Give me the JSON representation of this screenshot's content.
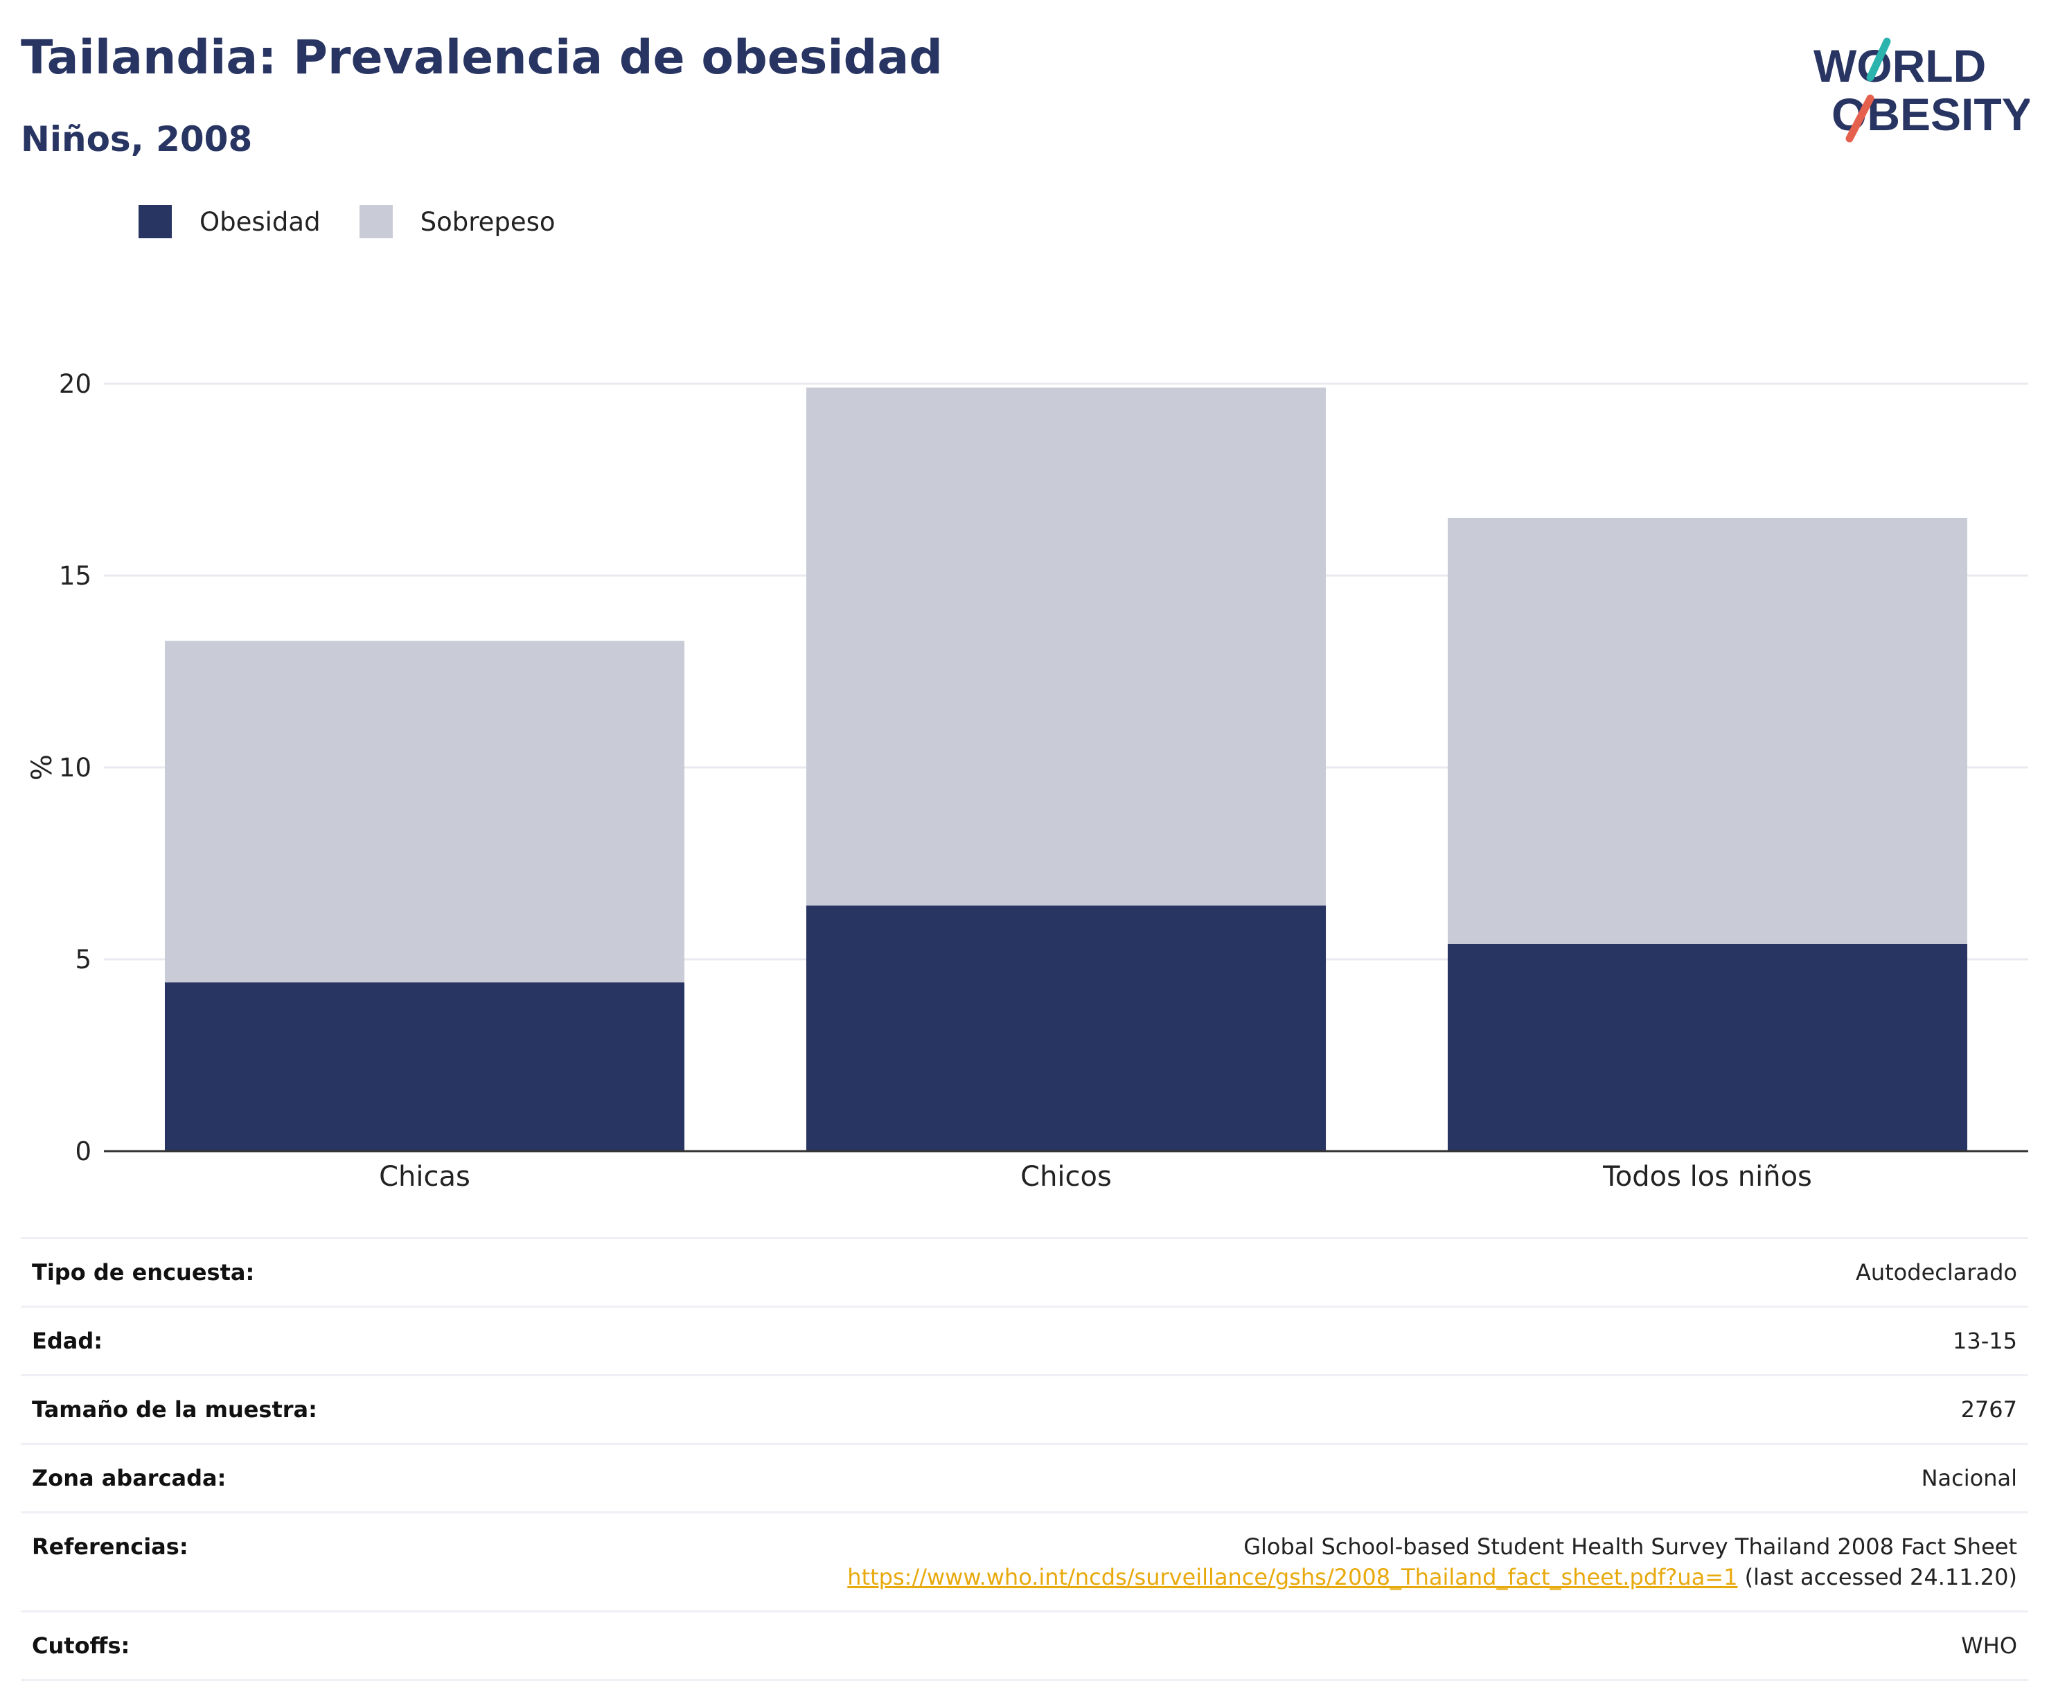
{
  "header": {
    "title": "Tailandia: Prevalencia de obesidad",
    "subtitle": "Niños, 2008"
  },
  "logo": {
    "line1": "WORLD",
    "line2": "OBESITY",
    "accent_teal": "#2bb3ad",
    "accent_red": "#e5604d",
    "text_color": "#283462"
  },
  "colors": {
    "obesidad": "#283462",
    "sobrepeso": "#c9cbd7",
    "grid": "#e9eaf0",
    "axis": "#333333"
  },
  "chart_data": {
    "type": "bar",
    "stacked": true,
    "categories": [
      "Chicas",
      "Chicos",
      "Todos los niños"
    ],
    "series": [
      {
        "name": "Obesidad",
        "values": [
          4.4,
          6.4,
          5.4
        ]
      },
      {
        "name": "Sobrepeso",
        "values": [
          8.9,
          13.5,
          11.1
        ]
      }
    ],
    "ylabel": "%",
    "ylim": [
      0,
      20
    ],
    "yticks": [
      0,
      5,
      10,
      15,
      20
    ],
    "grid": true,
    "legend_position": "top-left"
  },
  "meta": [
    {
      "key": "Tipo de encuesta:",
      "value": "Autodeclarado"
    },
    {
      "key": "Edad:",
      "value": "13-15"
    },
    {
      "key": "Tamaño de la muestra:",
      "value": "2767"
    },
    {
      "key": "Zona abarcada:",
      "value": "Nacional"
    }
  ],
  "references": {
    "key": "Referencias:",
    "text": "Global School-based Student Health Survey Thailand 2008 Fact Sheet",
    "link": "https://www.who.int/ncds/surveillance/gshs/2008_Thailand_fact_sheet.pdf?ua=1",
    "accessed": "(last accessed 24.11.20)"
  },
  "cutoffs": {
    "key": "Cutoffs:",
    "value": "WHO"
  }
}
